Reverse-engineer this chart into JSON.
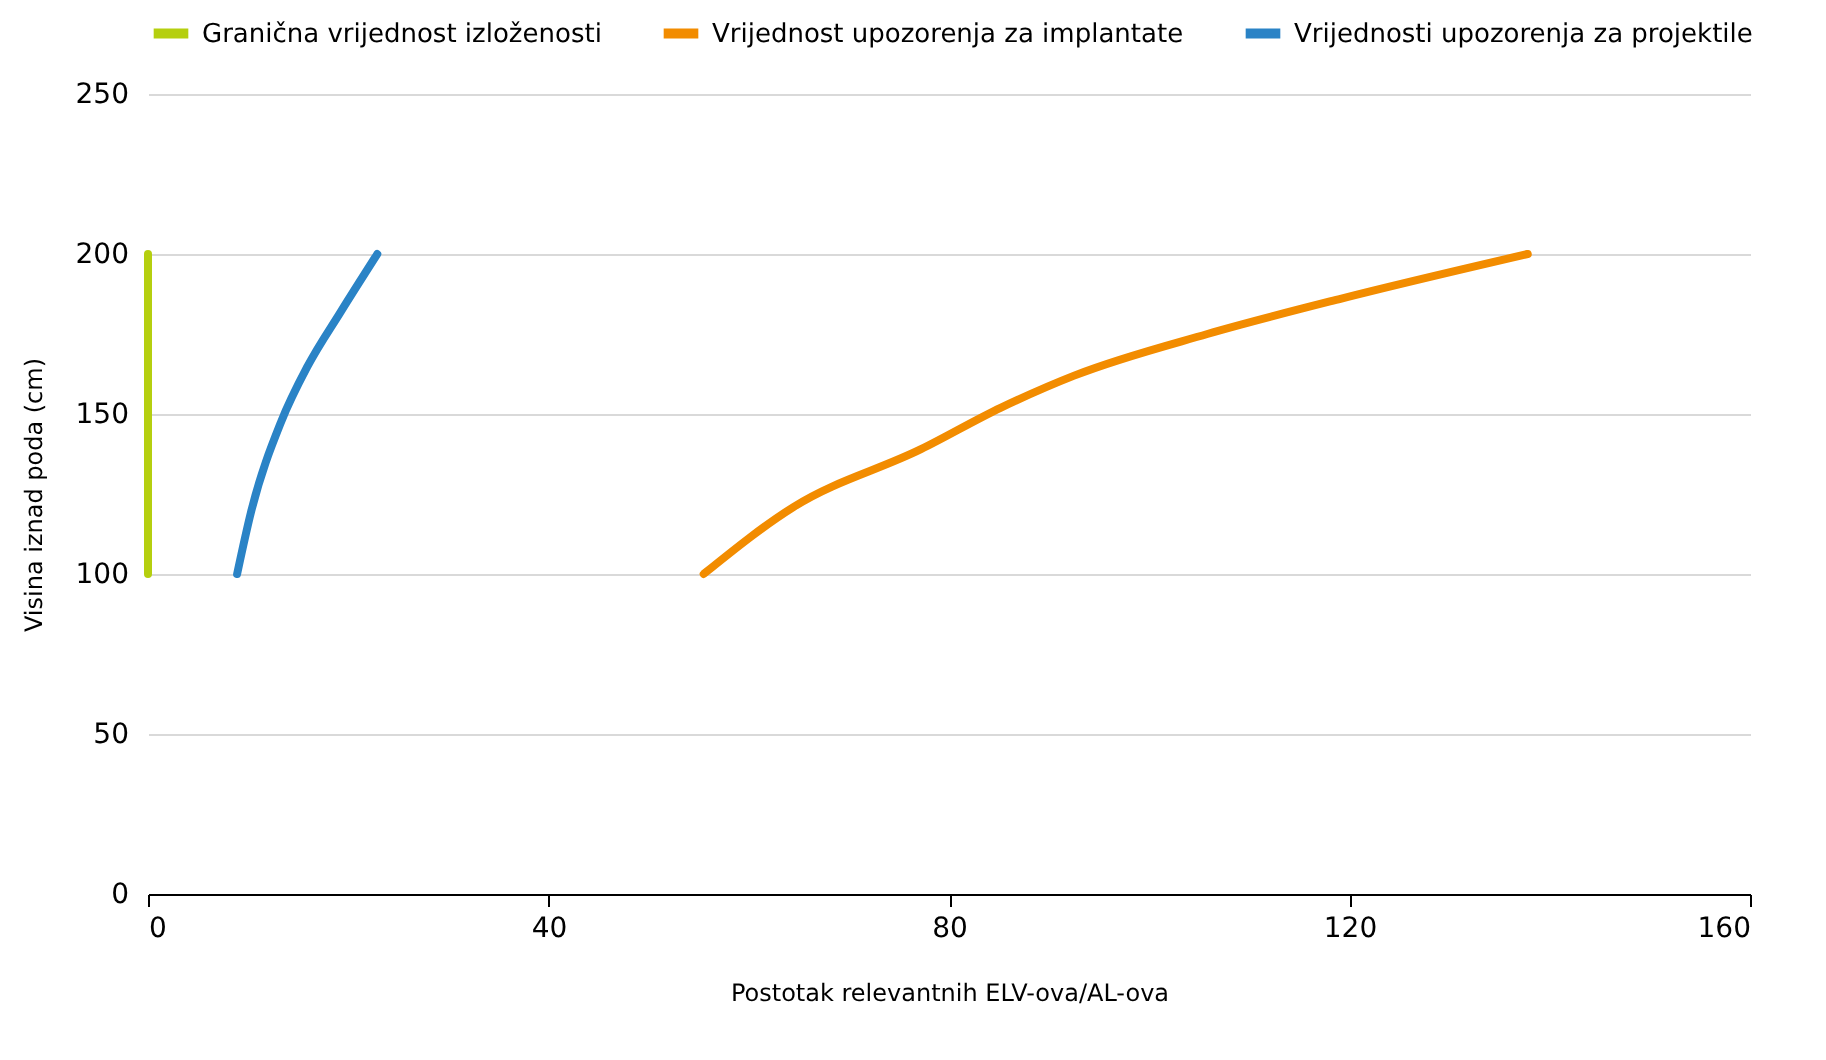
{
  "chart_data": {
    "type": "line",
    "xlabel": "Postotak relevantnih ELV-ova/AL-ova",
    "ylabel": "Visina iznad poda (cm)",
    "xlim": [
      0,
      160
    ],
    "xticks": [
      0,
      40,
      80,
      120,
      160
    ],
    "ylim": [
      0,
      250
    ],
    "yticks": [
      0,
      50,
      100,
      150,
      200,
      250
    ],
    "grid": "y",
    "legend": "top",
    "line_style": "solid",
    "marker": "none",
    "series": [
      {
        "name": "Granična vrijednost izloženosti",
        "color": "#b5cf0f",
        "x": [
          0,
          0
        ],
        "values": [
          100,
          200
        ]
      },
      {
        "name": "Vrijednost upozorenja za implantate",
        "color": "#f28c00",
        "x": [
          55.5,
          64.5,
          77.2,
          85.2,
          92.5,
          105.8,
          119.1,
          137.8
        ],
        "values": [
          100,
          121,
          139,
          152,
          162,
          175,
          186,
          200
        ]
      },
      {
        "name": "Vrijednosti upozorenja za projektile",
        "color": "#2a83c6",
        "x": [
          8.9,
          10.3,
          13.3,
          15.9,
          19.2,
          22.9
        ],
        "values": [
          100,
          119.5,
          147.6,
          164.7,
          181.7,
          200
        ]
      }
    ]
  }
}
